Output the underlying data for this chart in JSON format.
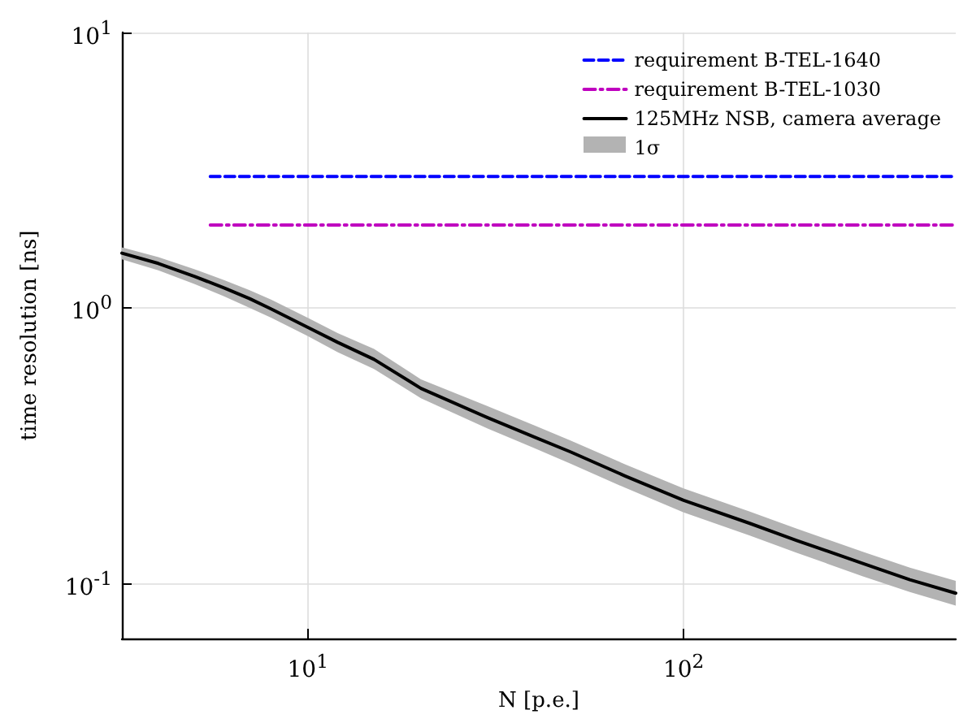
{
  "chart_data": {
    "type": "line",
    "xlabel": "N [p.e.]",
    "ylabel": "time resolution [ns]",
    "log": "xy",
    "grid": true,
    "legend": "top right",
    "annotations": [
      "1σ"
    ],
    "xlim": [
      3.2,
      530
    ],
    "ylim": [
      0.063,
      10
    ],
    "xticks": [
      {
        "value": 10,
        "label": "10$^{1}$"
      },
      {
        "value": 100,
        "label": "10$^{2}$"
      }
    ],
    "yticks": [
      {
        "value": 0.1,
        "label": "10$^{-1}$"
      },
      {
        "value": 1,
        "label": "10$^{0}$"
      },
      {
        "value": 10,
        "label": "10$^{1}$"
      }
    ],
    "series": [
      {
        "name": "requirement B-TEL-1640",
        "color": "#0000ff",
        "line_style": "dashed",
        "x": [
          5.5,
          530
        ],
        "values": [
          3,
          3
        ]
      },
      {
        "name": "requirement B-TEL-1030",
        "color": "#bf00bf",
        "line_style": "dotted",
        "x": [
          5.5,
          530
        ],
        "values": [
          2,
          2
        ]
      },
      {
        "name": "125MHz NSB, camera average",
        "color": "#000000",
        "line_style": "solid",
        "x": [
          3.2,
          4,
          5,
          6,
          7,
          8,
          10,
          12,
          15,
          20,
          30,
          40,
          50,
          70,
          100,
          150,
          200,
          300,
          400,
          530
        ],
        "values": [
          1.58,
          1.45,
          1.3,
          1.18,
          1.08,
          0.99,
          0.85,
          0.75,
          0.65,
          0.51,
          0.4,
          0.34,
          0.3,
          0.245,
          0.2,
          0.165,
          0.143,
          0.118,
          0.103,
          0.092
        ],
        "lower": [
          1.5,
          1.37,
          1.22,
          1.1,
          1.0,
          0.92,
          0.79,
          0.69,
          0.6,
          0.47,
          0.365,
          0.31,
          0.272,
          0.222,
          0.181,
          0.149,
          0.129,
          0.106,
          0.093,
          0.083
        ],
        "upper": [
          1.66,
          1.53,
          1.38,
          1.26,
          1.16,
          1.07,
          0.92,
          0.81,
          0.71,
          0.55,
          0.44,
          0.375,
          0.33,
          0.27,
          0.221,
          0.182,
          0.158,
          0.13,
          0.114,
          0.102
        ]
      }
    ]
  }
}
